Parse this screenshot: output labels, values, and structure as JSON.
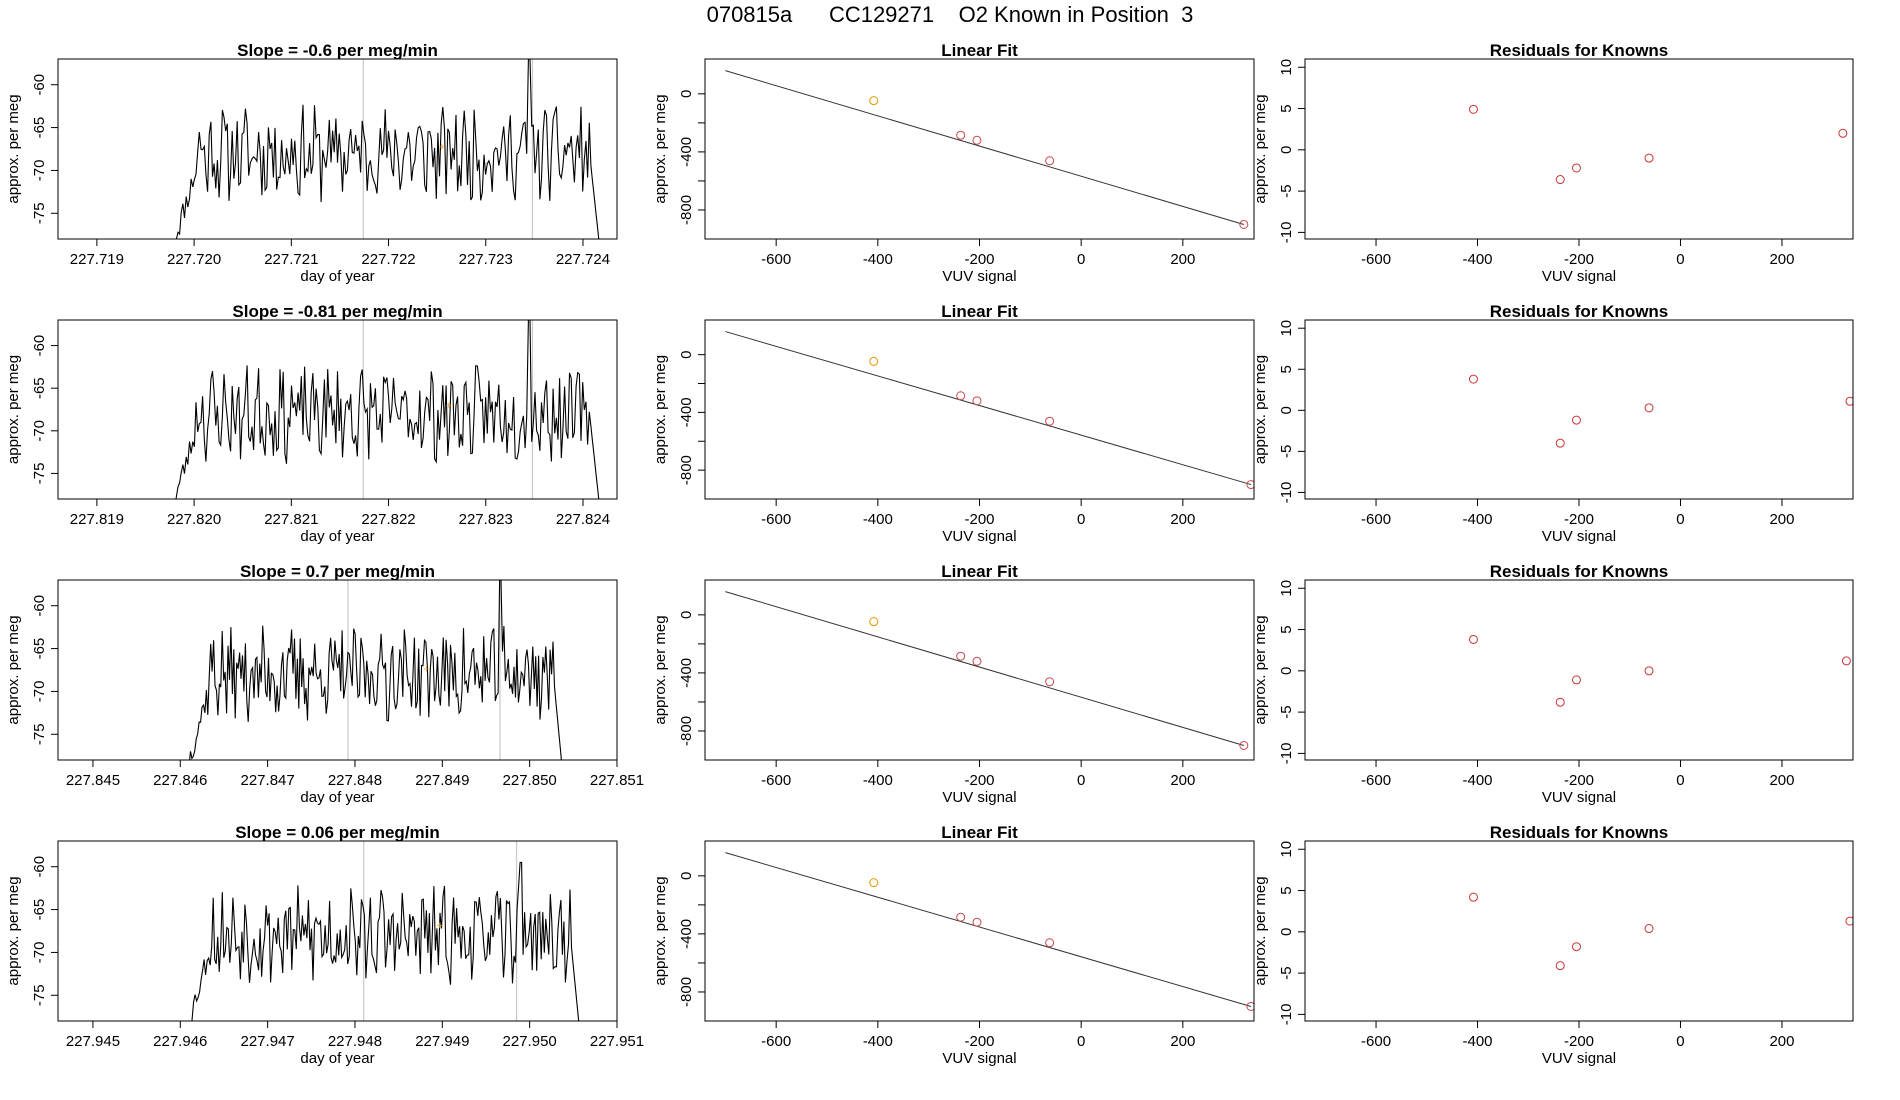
{
  "page": {
    "title_parts": [
      "070815a",
      "CC129271",
      "O2 Known in Position  3"
    ]
  },
  "colors": {
    "trace": "#000000",
    "marker": "#e6a020",
    "residual": "#cc3333",
    "fit_point_first": "#e69500",
    "fit_point": "#c8464b",
    "guide": "#c8c8c8"
  },
  "chart_data": [
    {
      "type": "line",
      "title": "Slope =  -0.6  per meg/min",
      "xlabel": "day of year",
      "ylabel": "approx. per meg",
      "xticks": [
        227.719,
        227.72,
        227.721,
        227.722,
        227.723,
        227.724
      ],
      "xtick_labels": [
        "227.719",
        "227.720",
        "227.721",
        "227.722",
        "227.723",
        "227.724"
      ],
      "yticks": [
        -75,
        -70,
        -65,
        -60
      ],
      "ytick_labels": [
        "-75",
        "-70",
        "-65",
        "-60"
      ],
      "xlim": [
        227.7186,
        227.72435
      ],
      "ylim": [
        -78,
        -57
      ],
      "series_start": 227.7198,
      "series_end": 227.7242,
      "vlines": [
        227.72174,
        227.72348
      ],
      "highlight": {
        "x": 227.72255,
        "y": -67.2
      },
      "spikes": [
        {
          "x": 227.72345,
          "y": -57
        }
      ],
      "seed": 11
    },
    {
      "type": "scatter",
      "title": "Linear Fit",
      "xlabel": "VUV signal",
      "ylabel": "approx. per meg",
      "xticks": [
        -600,
        -400,
        -200,
        0,
        200
      ],
      "xtick_labels": [
        "-600",
        "-400",
        "-200",
        "0",
        "200"
      ],
      "yticks": [
        -800,
        -400,
        0
      ],
      "ytick_labels": [
        "-800",
        "-400",
        "0"
      ],
      "extra_yticks": [
        -600,
        -200
      ],
      "xlim": [
        -740,
        340
      ],
      "ylim": [
        -1000,
        240
      ],
      "x": [
        -408,
        -237,
        -205,
        -62,
        320
      ],
      "y": [
        -47,
        -285,
        -320,
        -461,
        -900
      ],
      "fit_line": {
        "x": [
          -700,
          320
        ],
        "y": [
          160,
          -900
        ]
      }
    },
    {
      "type": "scatter",
      "title": "Residuals for Knowns",
      "xlabel": "VUV signal",
      "ylabel": "approx. per meg",
      "xticks": [
        -600,
        -400,
        -200,
        0,
        200
      ],
      "xtick_labels": [
        "-600",
        "-400",
        "-200",
        "0",
        "200"
      ],
      "yticks": [
        -10,
        -5,
        0,
        5,
        10
      ],
      "ytick_labels": [
        "-10",
        "-5",
        "0",
        "5",
        "10"
      ],
      "xlim": [
        -740,
        340
      ],
      "ylim": [
        -10.8,
        11
      ],
      "x": [
        -408,
        -237,
        -205,
        -62,
        320
      ],
      "y": [
        4.9,
        -3.6,
        -2.2,
        -1.0,
        2.0
      ]
    },
    {
      "type": "line",
      "title": "Slope =  -0.81  per meg/min",
      "xlabel": "day of year",
      "ylabel": "approx. per meg",
      "xticks": [
        227.819,
        227.82,
        227.821,
        227.822,
        227.823,
        227.824
      ],
      "xtick_labels": [
        "227.819",
        "227.820",
        "227.821",
        "227.822",
        "227.823",
        "227.824"
      ],
      "yticks": [
        -75,
        -70,
        -65,
        -60
      ],
      "ytick_labels": [
        "-75",
        "-70",
        "-65",
        "-60"
      ],
      "xlim": [
        227.8186,
        227.82435
      ],
      "ylim": [
        -78,
        -57
      ],
      "series_start": 227.8198,
      "series_end": 227.8242,
      "vlines": [
        227.82174,
        227.82348
      ],
      "highlight": {
        "x": 227.82262,
        "y": -67.0
      },
      "spikes": [
        {
          "x": 227.82345,
          "y": -57
        }
      ],
      "seed": 23
    },
    {
      "type": "scatter",
      "title": "Linear Fit",
      "xlabel": "VUV signal",
      "ylabel": "approx. per meg",
      "xticks": [
        -600,
        -400,
        -200,
        0,
        200
      ],
      "xtick_labels": [
        "-600",
        "-400",
        "-200",
        "0",
        "200"
      ],
      "yticks": [
        -800,
        -400,
        0
      ],
      "ytick_labels": [
        "-800",
        "-400",
        "0"
      ],
      "extra_yticks": [
        -600,
        -200
      ],
      "xlim": [
        -740,
        340
      ],
      "ylim": [
        -1000,
        240
      ],
      "x": [
        -408,
        -237,
        -205,
        -62,
        334
      ],
      "y": [
        -47,
        -285,
        -320,
        -461,
        -900
      ],
      "fit_line": {
        "x": [
          -700,
          334
        ],
        "y": [
          160,
          -900
        ]
      }
    },
    {
      "type": "scatter",
      "title": "Residuals for Knowns",
      "xlabel": "VUV signal",
      "ylabel": "approx. per meg",
      "xticks": [
        -600,
        -400,
        -200,
        0,
        200
      ],
      "xtick_labels": [
        "-600",
        "-400",
        "-200",
        "0",
        "200"
      ],
      "yticks": [
        -10,
        -5,
        0,
        5,
        10
      ],
      "ytick_labels": [
        "-10",
        "-5",
        "0",
        "5",
        "10"
      ],
      "xlim": [
        -740,
        340
      ],
      "ylim": [
        -10.8,
        11
      ],
      "x": [
        -408,
        -237,
        -205,
        -62,
        334
      ],
      "y": [
        3.8,
        -4.0,
        -1.2,
        0.3,
        1.1
      ]
    },
    {
      "type": "line",
      "title": "Slope =  0.7  per meg/min",
      "xlabel": "day of year",
      "ylabel": "approx. per meg",
      "xticks": [
        227.845,
        227.846,
        227.847,
        227.848,
        227.849,
        227.85,
        227.851
      ],
      "xtick_labels": [
        "227.845",
        "227.846",
        "227.847",
        "227.848",
        "227.849",
        "227.850",
        "227.851"
      ],
      "yticks": [
        -75,
        -70,
        -65,
        -60
      ],
      "ytick_labels": [
        "-75",
        "-70",
        "-65",
        "-60"
      ],
      "xlim": [
        227.8446,
        227.851
      ],
      "ylim": [
        -78,
        -57
      ],
      "series_start": 227.8461,
      "series_end": 227.8504,
      "vlines": [
        227.84792,
        227.84966
      ],
      "highlight": {
        "x": 227.84882,
        "y": -67.3
      },
      "spikes": [
        {
          "x": 227.84966,
          "y": -57
        }
      ],
      "seed": 37
    },
    {
      "type": "scatter",
      "title": "Linear Fit",
      "xlabel": "VUV signal",
      "ylabel": "approx. per meg",
      "xticks": [
        -600,
        -400,
        -200,
        0,
        200
      ],
      "xtick_labels": [
        "-600",
        "-400",
        "-200",
        "0",
        "200"
      ],
      "yticks": [
        -800,
        -400,
        0
      ],
      "ytick_labels": [
        "-800",
        "-400",
        "0"
      ],
      "extra_yticks": [
        -600,
        -200
      ],
      "xlim": [
        -740,
        340
      ],
      "ylim": [
        -1000,
        240
      ],
      "x": [
        -408,
        -237,
        -205,
        -62,
        320
      ],
      "y": [
        -47,
        -285,
        -320,
        -461,
        -900
      ],
      "fit_line": {
        "x": [
          -700,
          320
        ],
        "y": [
          160,
          -900
        ]
      }
    },
    {
      "type": "scatter",
      "title": "Residuals for Knowns",
      "xlabel": "VUV signal",
      "ylabel": "approx. per meg",
      "xticks": [
        -600,
        -400,
        -200,
        0,
        200
      ],
      "xtick_labels": [
        "-600",
        "-400",
        "-200",
        "0",
        "200"
      ],
      "yticks": [
        -10,
        -5,
        0,
        5,
        10
      ],
      "ytick_labels": [
        "-10",
        "-5",
        "0",
        "5",
        "10"
      ],
      "xlim": [
        -740,
        340
      ],
      "ylim": [
        -10.8,
        11
      ],
      "x": [
        -408,
        -237,
        -205,
        -62,
        327
      ],
      "y": [
        3.8,
        -3.8,
        -1.1,
        0.0,
        1.2
      ]
    },
    {
      "type": "line",
      "title": "Slope =  0.06  per meg/min",
      "xlabel": "day of year",
      "ylabel": "approx. per meg",
      "xticks": [
        227.945,
        227.946,
        227.947,
        227.948,
        227.949,
        227.95,
        227.951
      ],
      "xtick_labels": [
        "227.945",
        "227.946",
        "227.947",
        "227.948",
        "227.949",
        "227.950",
        "227.951"
      ],
      "yticks": [
        -75,
        -70,
        -65,
        -60
      ],
      "ytick_labels": [
        "-75",
        "-70",
        "-65",
        "-60"
      ],
      "xlim": [
        227.9446,
        227.951
      ],
      "ylim": [
        -78,
        -57
      ],
      "series_start": 227.9461,
      "series_end": 227.9506,
      "vlines": [
        227.9481,
        227.94985
      ],
      "highlight": {
        "x": 227.94897,
        "y": -66.8
      },
      "spikes": [
        {
          "x": 227.9499,
          "y": -59.5
        }
      ],
      "seed": 53
    },
    {
      "type": "scatter",
      "title": "Linear Fit",
      "xlabel": "VUV signal",
      "ylabel": "approx. per meg",
      "xticks": [
        -600,
        -400,
        -200,
        0,
        200
      ],
      "xtick_labels": [
        "-600",
        "-400",
        "-200",
        "0",
        "200"
      ],
      "yticks": [
        -800,
        -400,
        0
      ],
      "ytick_labels": [
        "-800",
        "-400",
        "0"
      ],
      "extra_yticks": [
        -600,
        -200
      ],
      "xlim": [
        -740,
        340
      ],
      "ylim": [
        -1000,
        240
      ],
      "x": [
        -408,
        -237,
        -205,
        -62,
        334
      ],
      "y": [
        -47,
        -285,
        -320,
        -461,
        -900
      ],
      "fit_line": {
        "x": [
          -700,
          334
        ],
        "y": [
          160,
          -900
        ]
      }
    },
    {
      "type": "scatter",
      "title": "Residuals for Knowns",
      "xlabel": "VUV signal",
      "ylabel": "approx. per meg",
      "xticks": [
        -600,
        -400,
        -200,
        0,
        200
      ],
      "xtick_labels": [
        "-600",
        "-400",
        "-200",
        "0",
        "200"
      ],
      "yticks": [
        -10,
        -5,
        0,
        5,
        10
      ],
      "ytick_labels": [
        "-10",
        "-5",
        "0",
        "5",
        "10"
      ],
      "xlim": [
        -740,
        340
      ],
      "ylim": [
        -10.8,
        11
      ],
      "x": [
        -408,
        -237,
        -205,
        -62,
        334
      ],
      "y": [
        4.2,
        -4.1,
        -1.8,
        0.4,
        1.3
      ]
    }
  ]
}
